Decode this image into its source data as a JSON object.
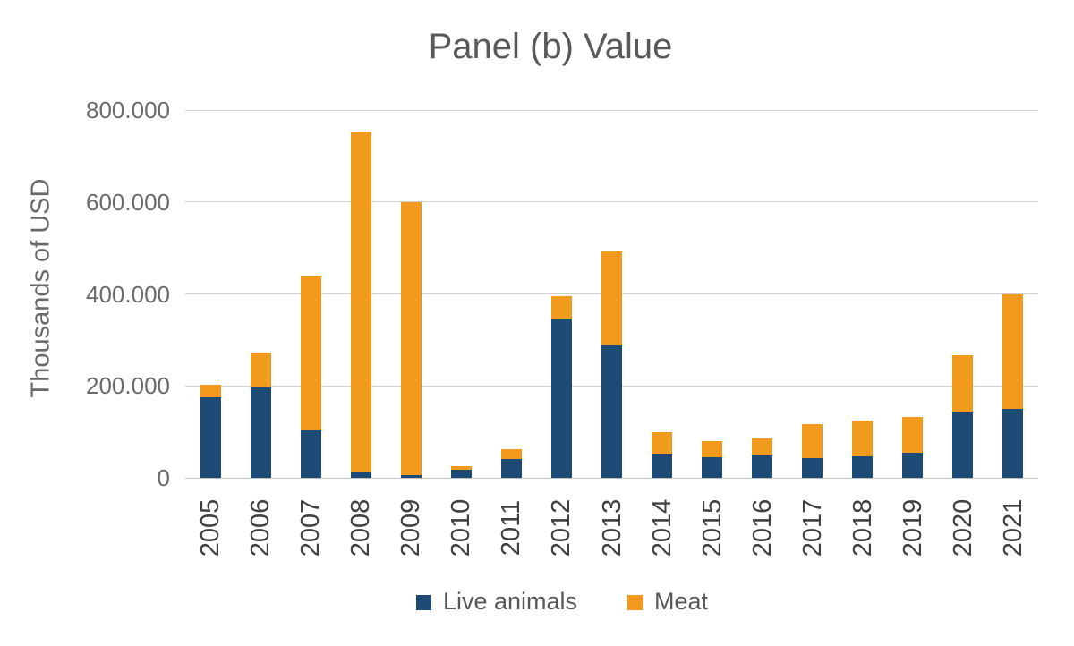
{
  "title": "Panel (b) Value",
  "chart_data": {
    "type": "bar",
    "stacked": true,
    "title": "Panel (b) Value",
    "ylabel": "Thousands of USD",
    "xlabel": "",
    "categories": [
      "2005",
      "2006",
      "2007",
      "2008",
      "2009",
      "2010",
      "2011",
      "2012",
      "2013",
      "2014",
      "2015",
      "2016",
      "2017",
      "2018",
      "2019",
      "2020",
      "2021"
    ],
    "series": [
      {
        "name": "Live animals",
        "color": "#1D4B76",
        "values": [
          175000,
          196000,
          104000,
          12000,
          5000,
          18000,
          41000,
          347000,
          288000,
          52000,
          45000,
          49000,
          43000,
          46000,
          55000,
          142000,
          150000
        ]
      },
      {
        "name": "Meat",
        "color": "#F19A1D",
        "values": [
          28000,
          76000,
          334000,
          742000,
          595000,
          8000,
          22000,
          48000,
          205000,
          48000,
          35000,
          37000,
          73000,
          78000,
          77000,
          124000,
          250000
        ]
      }
    ],
    "ylim": [
      0,
      800000
    ],
    "yticks": [
      {
        "value": 0,
        "label": "0"
      },
      {
        "value": 200000,
        "label": "200.000"
      },
      {
        "value": 400000,
        "label": "400.000"
      },
      {
        "value": 600000,
        "label": "600.000"
      },
      {
        "value": 800000,
        "label": "800.000"
      }
    ],
    "grid": true,
    "legend_position": "bottom"
  },
  "colors": {
    "live_animals": "#1D4B76",
    "meat": "#F19A1D",
    "grid": "#CFCFCF",
    "baseline": "#C6C6C6",
    "background": "#FFFFFF"
  }
}
